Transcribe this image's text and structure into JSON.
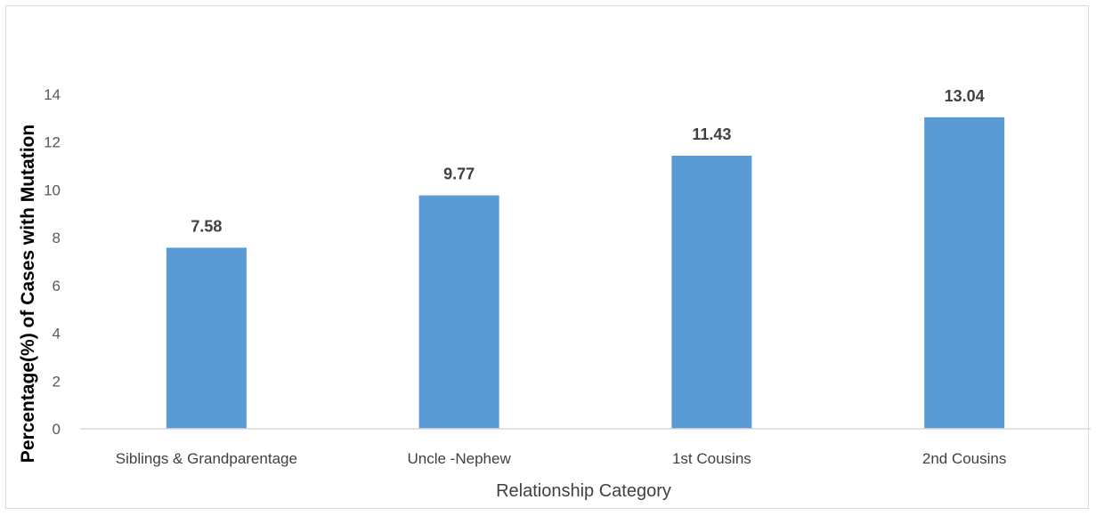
{
  "chart_data": {
    "type": "bar",
    "title": "",
    "xlabel": "Relationship Category",
    "ylabel": "Percentage(%) of Cases with Mutation",
    "categories": [
      "Siblings & Grandparentage",
      "Uncle -Nephew",
      "1st Cousins",
      "2nd Cousins"
    ],
    "values": [
      7.58,
      9.77,
      11.43,
      13.04
    ],
    "data_labels": [
      "7.58",
      "9.77",
      "11.43",
      "13.04"
    ],
    "ylim": [
      0,
      14
    ],
    "yticks": [
      0,
      2,
      4,
      6,
      8,
      10,
      12,
      14
    ],
    "ytick_labels": [
      "0",
      "2",
      "4",
      "6",
      "8",
      "10",
      "12",
      "14"
    ],
    "grid": false,
    "legend": "none",
    "colors": {
      "bar": "#5b9bd5",
      "axis": "#d9d9d9",
      "frame": "#d9d9d9"
    }
  }
}
